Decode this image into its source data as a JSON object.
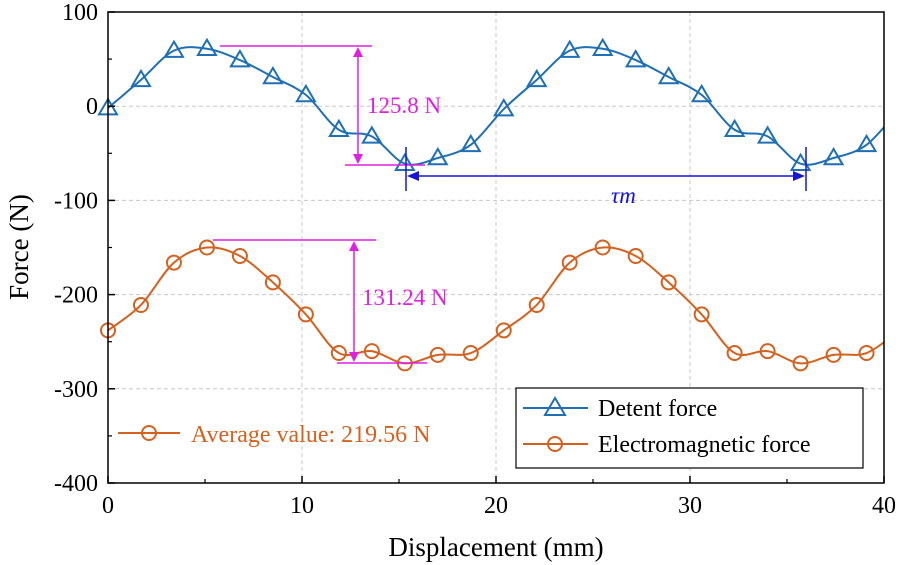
{
  "chart_data": {
    "type": "line",
    "title": "",
    "xlabel": "Displacement (mm)",
    "ylabel": "Force (N)",
    "xlim": [
      0,
      40
    ],
    "ylim": [
      -400,
      100
    ],
    "xticks": [
      0,
      10,
      20,
      30,
      40
    ],
    "yticks": [
      100,
      0,
      -100,
      -200,
      -300,
      -400
    ],
    "grid": true,
    "legend_position": "bottom-right",
    "series": [
      {
        "name": "Detent force",
        "color": "#1f6fb5",
        "marker": "triangle",
        "x": [
          0,
          1.7,
          3.4,
          5.1,
          6.8,
          8.5,
          10.2,
          11.9,
          13.6,
          15.3,
          17.0,
          18.7,
          20.4,
          22.1,
          23.8,
          25.5,
          27.2,
          28.9,
          30.6,
          32.3,
          34.0,
          35.7,
          37.4,
          39.1
        ],
        "y": [
          -2,
          28,
          59,
          61,
          49,
          31,
          12,
          -25,
          -32,
          -61,
          -55,
          -41,
          -3,
          28,
          59,
          61,
          49,
          31,
          12,
          -25,
          -32,
          -61,
          -55,
          -41
        ]
      },
      {
        "name": "Electromagnetic force",
        "color": "#d4611e",
        "marker": "circle",
        "x": [
          0,
          1.7,
          3.4,
          5.1,
          6.8,
          8.5,
          10.2,
          11.9,
          13.6,
          15.3,
          17.0,
          18.7,
          20.4,
          22.1,
          23.8,
          25.5,
          27.2,
          28.9,
          30.6,
          32.3,
          34.0,
          35.7,
          37.4,
          39.1
        ],
        "y": [
          -238,
          -211,
          -166,
          -150,
          -159,
          -187,
          -221,
          -262,
          -260,
          -273,
          -264,
          -262,
          -238,
          -211,
          -166,
          -150,
          -159,
          -187,
          -221,
          -262,
          -260,
          -273,
          -264,
          -262
        ]
      }
    ],
    "annotations": [
      {
        "text": "125.8 N",
        "color": "#e020e0",
        "from": 61,
        "to": -64.8
      },
      {
        "text": "131.24 N",
        "color": "#e020e0",
        "from": -144,
        "to": -275.24
      },
      {
        "text": "τm",
        "color": "#1515d6",
        "x_from": 15.3,
        "x_to": 35.7
      },
      {
        "text": "Average value: 219.56 N",
        "color": "#d4611e"
      }
    ]
  }
}
